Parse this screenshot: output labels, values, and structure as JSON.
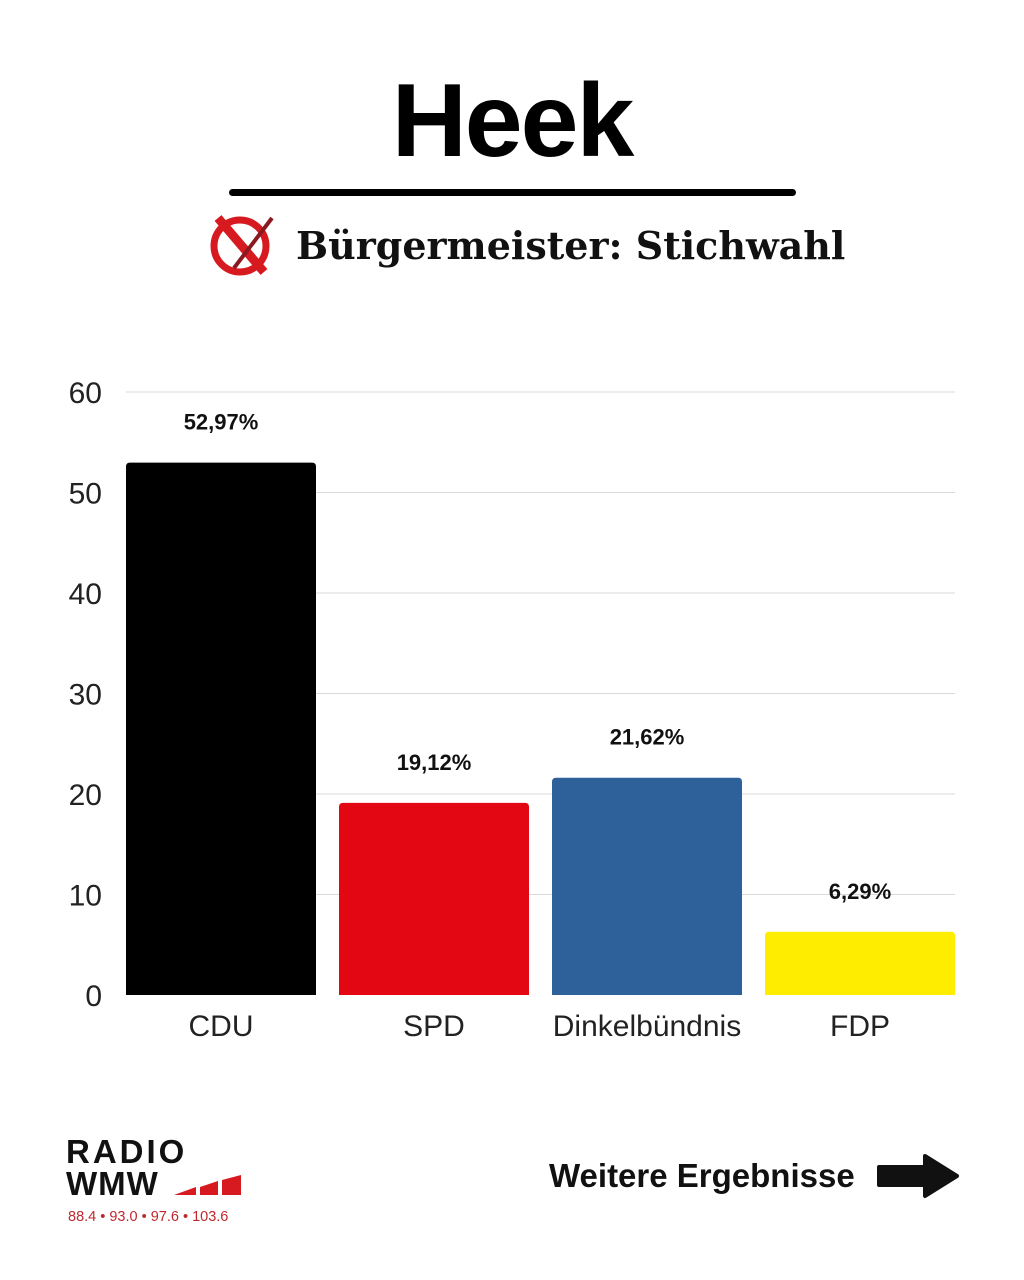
{
  "header": {
    "title": "Heek",
    "subtitle": "Bürgermeister: Stichwahl",
    "icon": "ballot-cross-icon"
  },
  "chart_data": {
    "type": "bar",
    "categories": [
      "CDU",
      "SPD",
      "Dinkelbündnis",
      "FDP"
    ],
    "values": [
      52.97,
      19.12,
      21.62,
      6.29
    ],
    "data_labels": [
      "52,97%",
      "19,12%",
      "21,62%",
      "6,29%"
    ],
    "colors": [
      "#000000",
      "#e30613",
      "#2e6199",
      "#ffed00"
    ],
    "ylim": [
      0,
      60
    ],
    "yticks": [
      "0",
      "10",
      "20",
      "30",
      "40",
      "50",
      "60"
    ],
    "grid": true,
    "title": "",
    "xlabel": "",
    "ylabel": ""
  },
  "footer": {
    "logo_line1": "RADIO",
    "logo_line2": "WMW",
    "logo_freqs": "88.4 • 93.0 • 97.6 • 103.6",
    "more_label": "Weitere Ergebnisse",
    "more_icon": "arrow-right-icon"
  }
}
